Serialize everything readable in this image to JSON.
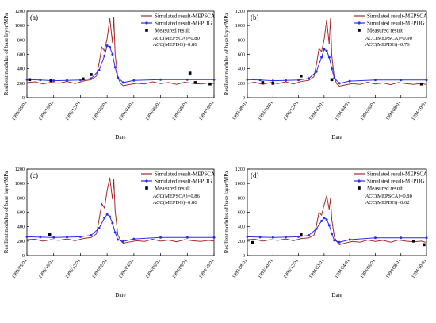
{
  "colors": {
    "mepsca": "#a52a2a",
    "mepdg": "#2c2cf0",
    "measured": "#000000",
    "axis": "#000000"
  },
  "shared_axes": {
    "xlabel": "Date",
    "ylabel": "Resilient modulus of base layer/MPa",
    "x_ticks": [
      "1993/08/01",
      "1993/10/01",
      "1993/12/01",
      "1994/02/01",
      "1994/04/01",
      "1994/06/01",
      "1994/08/01",
      "1994/10/01"
    ],
    "ylim": [
      0,
      1200
    ],
    "y_ticks": [
      0,
      200,
      400,
      600,
      800,
      1000,
      1200
    ]
  },
  "chart_data": [
    {
      "type": "line",
      "panel": "(a)",
      "legend_position": "top-right",
      "legend": [
        "Simulated result-MEPSCA",
        "Simulated result-MEPDG",
        "Measured result"
      ],
      "acc": [
        "ACC(MEPSCA)=0.80",
        "ACC(MEPDG)=0.86"
      ],
      "xlabel": "Date",
      "ylabel": "Resilient modulus of base layer/MPa",
      "ylim": [
        0,
        1200
      ],
      "series": [
        {
          "name": "Simulated result-MEPSCA",
          "x": [
            0,
            0.3,
            0.6,
            0.9,
            1.2,
            1.5,
            1.8,
            2.1,
            2.4,
            2.6,
            2.7,
            2.8,
            2.9,
            3.0,
            3.1,
            3.2,
            3.25,
            3.3,
            3.4,
            3.5,
            3.6,
            3.8,
            4.1,
            4.4,
            4.7,
            5.0,
            5.3,
            5.6,
            5.9,
            6.2,
            6.5,
            6.8,
            7.0
          ],
          "y": [
            210,
            220,
            190,
            215,
            200,
            225,
            195,
            230,
            250,
            300,
            480,
            700,
            650,
            820,
            1100,
            760,
            1120,
            600,
            280,
            200,
            165,
            180,
            200,
            190,
            220,
            195,
            210,
            185,
            215,
            200,
            190,
            205,
            195
          ]
        },
        {
          "name": "Simulated result-MEPDG",
          "x": [
            0,
            0.5,
            1,
            1.5,
            2,
            2.4,
            2.7,
            2.9,
            3.0,
            3.1,
            3.2,
            3.3,
            3.4,
            3.6,
            4,
            5,
            6,
            7
          ],
          "y": [
            250,
            245,
            235,
            240,
            245,
            265,
            380,
            580,
            720,
            700,
            600,
            420,
            280,
            210,
            240,
            250,
            250,
            250
          ]
        },
        {
          "name": "Measured result",
          "x": [
            0.1,
            0.9,
            2.1,
            2.4,
            6.1,
            6.3,
            6.85
          ],
          "y": [
            250,
            240,
            260,
            320,
            340,
            210,
            190
          ]
        }
      ]
    },
    {
      "type": "line",
      "panel": "(b)",
      "legend_position": "top-right",
      "legend": [
        "Simulated result-MEPSCA",
        "Simulated result-MEPDG",
        "Measured result"
      ],
      "acc": [
        "ACC(MEPSCA)=0.90",
        "ACC(MEPDG)=0.76"
      ],
      "xlabel": "Date",
      "ylabel": "Resilient modulus of base layer/MPa",
      "ylim": [
        0,
        1200
      ],
      "series": [
        {
          "name": "Simulated result-MEPSCA",
          "x": [
            0,
            0.3,
            0.6,
            0.9,
            1.2,
            1.5,
            1.8,
            2.1,
            2.4,
            2.6,
            2.7,
            2.8,
            2.9,
            3.0,
            3.1,
            3.2,
            3.25,
            3.3,
            3.4,
            3.5,
            3.6,
            3.8,
            4.1,
            4.4,
            4.7,
            5.0,
            5.3,
            5.6,
            5.9,
            6.2,
            6.5,
            6.8,
            7.0
          ],
          "y": [
            200,
            215,
            185,
            210,
            195,
            220,
            190,
            225,
            240,
            290,
            460,
            680,
            640,
            800,
            1080,
            740,
            1100,
            580,
            270,
            190,
            160,
            175,
            195,
            185,
            215,
            190,
            205,
            180,
            210,
            195,
            185,
            200,
            180
          ]
        },
        {
          "name": "Simulated result-MEPDG",
          "x": [
            0,
            0.5,
            1,
            1.5,
            2,
            2.4,
            2.7,
            2.9,
            3.0,
            3.1,
            3.2,
            3.3,
            3.4,
            3.6,
            4,
            5,
            6,
            7
          ],
          "y": [
            250,
            245,
            235,
            240,
            245,
            265,
            360,
            560,
            670,
            650,
            560,
            400,
            270,
            200,
            230,
            245,
            245,
            245
          ]
        },
        {
          "name": "Measured result",
          "x": [
            0.6,
            1.0,
            2.1,
            3.3,
            6.8
          ],
          "y": [
            210,
            200,
            300,
            250,
            190
          ]
        }
      ]
    },
    {
      "type": "line",
      "panel": "(c)",
      "legend_position": "top-right",
      "legend": [
        "Simulated result-MEPSCA",
        "Simulated result-MEPDG",
        "Measured result"
      ],
      "acc": [
        "ACC(MEPSCA)=0.86",
        "ACC(MEPDG)=0.86"
      ],
      "xlabel": "Date",
      "ylabel": "Resilient modulus of base layer/MPa",
      "ylim": [
        0,
        1200
      ],
      "series": [
        {
          "name": "Simulated result-MEPSCA",
          "x": [
            0,
            0.3,
            0.6,
            0.9,
            1.2,
            1.5,
            1.8,
            2.1,
            2.4,
            2.6,
            2.7,
            2.8,
            2.9,
            3.0,
            3.1,
            3.2,
            3.25,
            3.3,
            3.4,
            3.5,
            3.6,
            3.8,
            4.1,
            4.4,
            4.7,
            5.0,
            5.3,
            5.6,
            5.9,
            6.2,
            6.5,
            6.8,
            7.0
          ],
          "y": [
            220,
            225,
            200,
            220,
            210,
            230,
            205,
            235,
            250,
            300,
            500,
            720,
            660,
            900,
            1080,
            780,
            1060,
            620,
            290,
            210,
            170,
            185,
            205,
            195,
            225,
            200,
            215,
            190,
            220,
            205,
            195,
            210,
            200
          ]
        },
        {
          "name": "Simulated result-MEPDG",
          "x": [
            0,
            0.5,
            1,
            1.5,
            2,
            2.4,
            2.7,
            2.9,
            3.0,
            3.1,
            3.2,
            3.3,
            3.4,
            3.6,
            4,
            5,
            6,
            7
          ],
          "y": [
            260,
            255,
            250,
            255,
            260,
            280,
            380,
            520,
            570,
            540,
            450,
            320,
            220,
            195,
            230,
            250,
            250,
            250
          ]
        },
        {
          "name": "Measured result",
          "x": [
            0.85
          ],
          "y": [
            290
          ]
        }
      ]
    },
    {
      "type": "line",
      "panel": "(d)",
      "legend_position": "top-right",
      "legend": [
        "Simulated result-MEPSCA",
        "Simulated result-MEPDG",
        "Measured result"
      ],
      "acc": [
        "ACC(MEPSCA)=0.80",
        "ACC(MEPDG)=0.62"
      ],
      "xlabel": "Date",
      "ylabel": "Resilient modulus of base layer/MPa",
      "ylim": [
        0,
        1200
      ],
      "series": [
        {
          "name": "Simulated result-MEPSCA",
          "x": [
            0,
            0.3,
            0.6,
            0.9,
            1.2,
            1.5,
            1.8,
            2.1,
            2.4,
            2.6,
            2.7,
            2.8,
            2.9,
            3.0,
            3.1,
            3.2,
            3.25,
            3.3,
            3.4,
            3.5,
            3.6,
            3.8,
            4.1,
            4.4,
            4.7,
            5.0,
            5.3,
            5.6,
            5.9,
            6.2,
            6.5,
            6.8,
            7.0
          ],
          "y": [
            220,
            225,
            200,
            220,
            210,
            230,
            205,
            235,
            245,
            280,
            420,
            600,
            560,
            700,
            830,
            640,
            800,
            500,
            260,
            190,
            150,
            170,
            195,
            185,
            215,
            195,
            210,
            185,
            215,
            200,
            190,
            200,
            180
          ]
        },
        {
          "name": "Simulated result-MEPDG",
          "x": [
            0,
            0.5,
            1,
            1.5,
            2,
            2.4,
            2.7,
            2.9,
            3.0,
            3.1,
            3.2,
            3.3,
            3.4,
            3.6,
            4,
            5,
            6,
            7
          ],
          "y": [
            260,
            255,
            250,
            255,
            260,
            280,
            370,
            480,
            520,
            500,
            420,
            300,
            210,
            185,
            220,
            245,
            245,
            245
          ]
        },
        {
          "name": "Measured result",
          "x": [
            0.2,
            2.1,
            6.5,
            6.9
          ],
          "y": [
            180,
            290,
            200,
            150
          ]
        }
      ]
    }
  ]
}
